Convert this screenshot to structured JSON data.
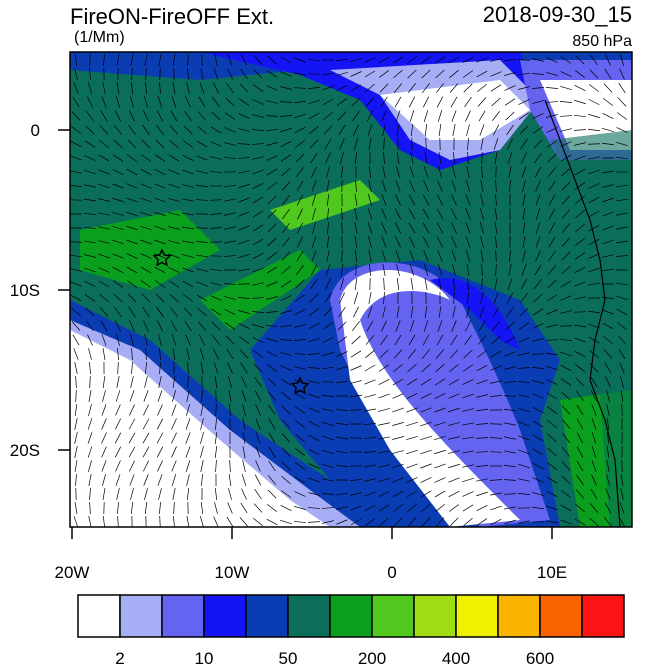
{
  "header": {
    "title": "FireON-FireOFF Ext.",
    "units": "(1/Mm)",
    "time": "2018-09-30_15",
    "level": "850 hPa"
  },
  "map": {
    "lat_labels": [
      "0",
      "10S",
      "20S"
    ],
    "lon_labels": [
      "20W",
      "10W",
      "0",
      "10E"
    ]
  },
  "colorbar": {
    "colors": [
      "#ffffff",
      "#a8aef5",
      "#6464f0",
      "#1414f5",
      "#0a3cb4",
      "#0a6e5a",
      "#0aa01e",
      "#50c81e",
      "#a0dc14",
      "#f0f000",
      "#fab400",
      "#fa6400",
      "#fa1414"
    ],
    "labels": [
      "2",
      "10",
      "50",
      "200",
      "400",
      "600"
    ]
  }
}
